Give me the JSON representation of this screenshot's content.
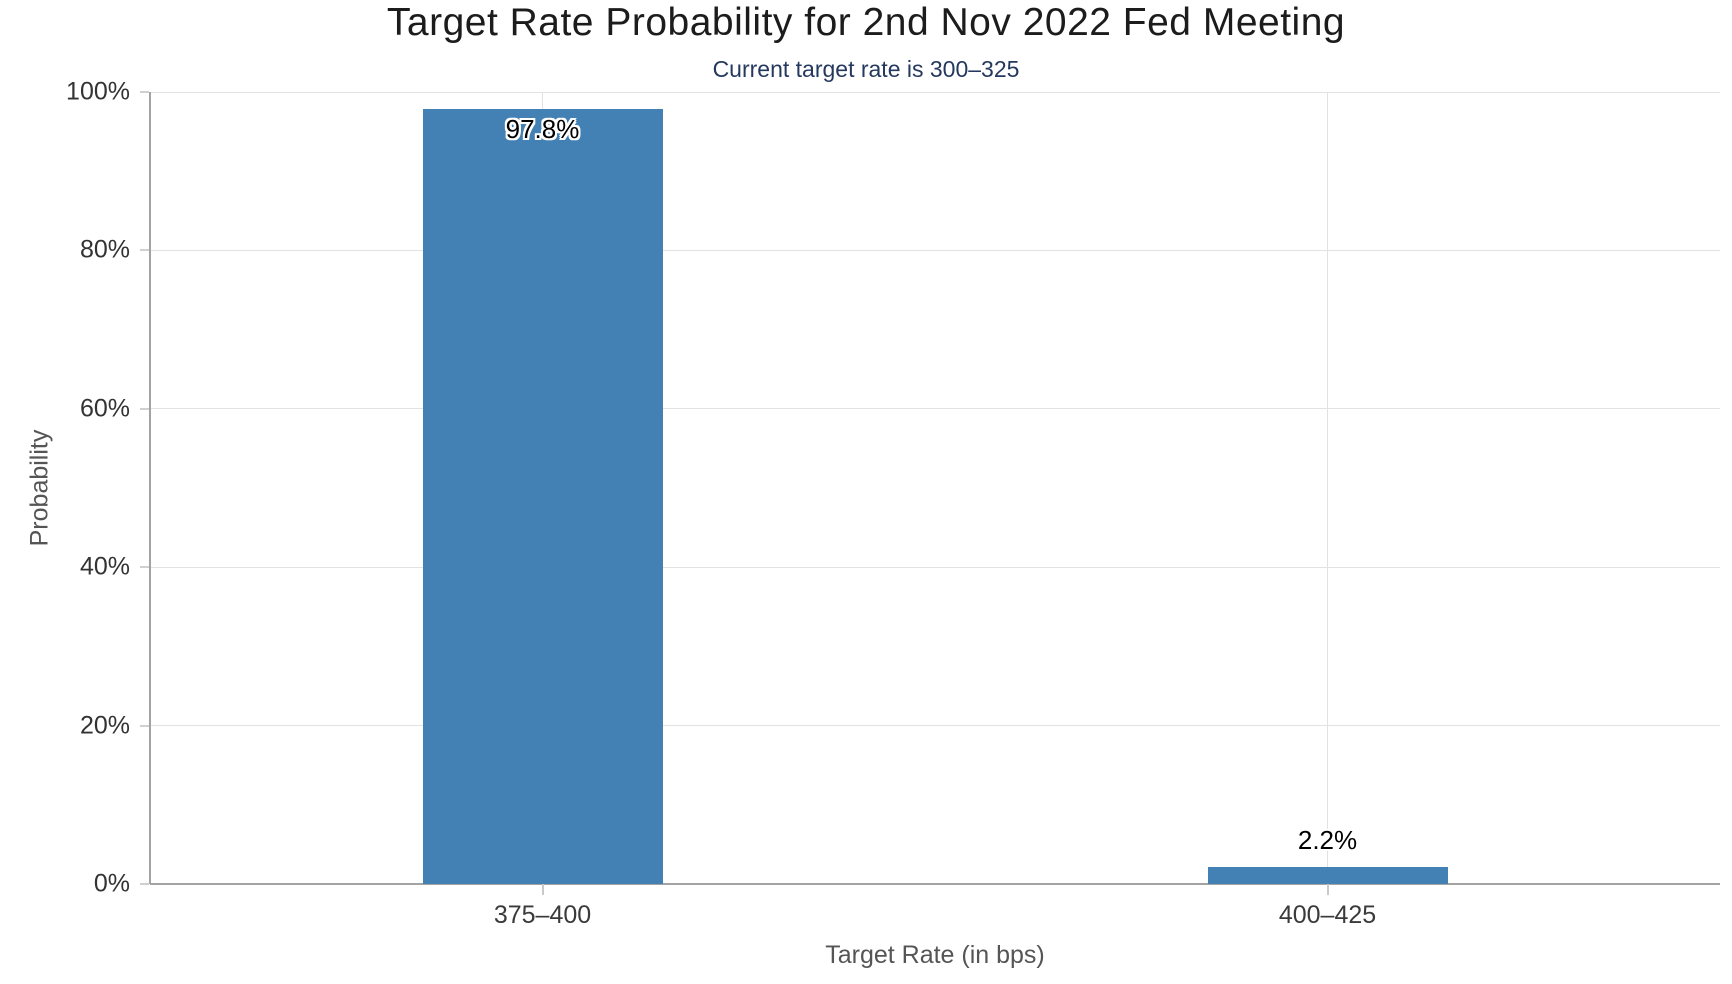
{
  "chart_data": {
    "type": "bar",
    "title": "Target Rate Probability for 2nd Nov 2022 Fed Meeting",
    "subtitle": "Current target rate is 300–325",
    "xlabel": "Target Rate (in bps)",
    "ylabel": "Probability",
    "categories": [
      "375–400",
      "400–425"
    ],
    "values": [
      97.8,
      2.2
    ],
    "value_labels": [
      "97.8%",
      "2.2%"
    ],
    "ylim": [
      0,
      100
    ],
    "yticks": [
      0,
      20,
      40,
      60,
      80,
      100
    ],
    "ytick_labels": [
      "0%",
      "20%",
      "40%",
      "60%",
      "80%",
      "100%"
    ],
    "grid": true,
    "legend": false
  },
  "colors": {
    "bar": "#4380b4",
    "title": "#1c1c1c",
    "subtitle": "#25395f",
    "gridline": "#e2e2e2",
    "axis_line": "#a3a3a3",
    "tick_label": "#333333",
    "axis_title": "#555555"
  }
}
